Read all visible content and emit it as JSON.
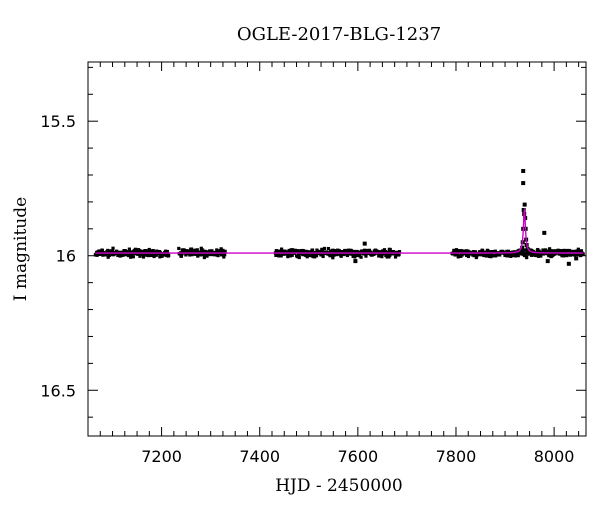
{
  "chart_data": {
    "type": "scatter",
    "title": "OGLE-2017-BLG-1237",
    "xlabel": "HJD - 2450000",
    "ylabel": "I magnitude",
    "xlim": [
      7050,
      8065
    ],
    "ylim": [
      16.67,
      15.28
    ],
    "y_inverted": true,
    "grid": false,
    "x_ticks": [
      7200,
      7400,
      7600,
      7800,
      8000
    ],
    "x_tick_labels": [
      "7200",
      "7400",
      "7600",
      "7800",
      "8000"
    ],
    "y_ticks": [
      15.5,
      16,
      16.5
    ],
    "y_tick_labels": [
      "15.5",
      "16",
      "16.5"
    ],
    "colors": {
      "points": "#000000",
      "model": "#cc00cc",
      "axes": "#000000"
    },
    "series": [
      {
        "kind": "points",
        "observing_seasons": [
          [
            7065,
            7215
          ],
          [
            7235,
            7330
          ],
          [
            7432,
            7685
          ],
          [
            7792,
            8060
          ]
        ],
        "baseline_mag": 15.99,
        "scatter_mag": 0.025,
        "points": [
          {
            "x": 7938,
            "y": 15.83
          },
          {
            "x": 7940,
            "y": 15.81
          },
          {
            "x": 7939,
            "y": 15.845
          },
          {
            "x": 7941,
            "y": 15.86
          },
          {
            "x": 7937,
            "y": 15.9
          },
          {
            "x": 7942,
            "y": 15.9
          },
          {
            "x": 7943,
            "y": 15.94
          },
          {
            "x": 7936,
            "y": 15.95
          },
          {
            "x": 7935,
            "y": 15.97
          },
          {
            "x": 7944,
            "y": 15.96
          },
          {
            "x": 7946,
            "y": 15.975
          },
          {
            "x": 7950,
            "y": 15.98
          },
          {
            "x": 7937,
            "y": 15.685
          },
          {
            "x": 7937,
            "y": 15.73
          },
          {
            "x": 7980,
            "y": 15.915
          },
          {
            "x": 7614,
            "y": 15.955
          },
          {
            "x": 7595,
            "y": 16.02
          },
          {
            "x": 7987,
            "y": 16.02
          },
          {
            "x": 8030,
            "y": 16.03
          },
          {
            "x": 8045,
            "y": 16.01
          }
        ]
      },
      {
        "kind": "model",
        "baseline": 15.99,
        "t0": 7939.5,
        "peak_mag": 15.83,
        "width_days": 2.5,
        "x_range": [
          7065,
          8060
        ]
      }
    ]
  }
}
